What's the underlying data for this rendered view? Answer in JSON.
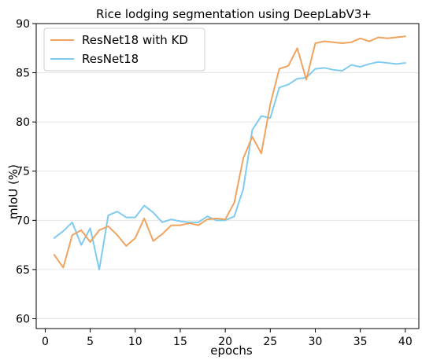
{
  "chart_data": {
    "type": "line",
    "title": "Rice lodging segmentation using DeepLabV3+",
    "xlabel": "epochs",
    "ylabel": "mIoU (%)",
    "xlim": [
      -1,
      41.5
    ],
    "ylim": [
      59,
      90
    ],
    "xticks": [
      0,
      5,
      10,
      15,
      20,
      25,
      30,
      35,
      40
    ],
    "yticks": [
      60,
      65,
      70,
      75,
      80,
      85,
      90
    ],
    "grid": "horizontal",
    "legend": "top-left",
    "x": [
      1,
      2,
      3,
      4,
      5,
      6,
      7,
      8,
      9,
      10,
      11,
      12,
      13,
      14,
      15,
      16,
      17,
      18,
      19,
      20,
      21,
      22,
      23,
      24,
      25,
      26,
      27,
      28,
      29,
      30,
      31,
      32,
      33,
      34,
      35,
      36,
      37,
      38,
      39,
      40
    ],
    "series": [
      {
        "name": "ResNet18 with KD",
        "color": "#f0a35e",
        "values": [
          66.5,
          65.2,
          68.5,
          69.0,
          67.8,
          69.0,
          69.4,
          68.5,
          67.4,
          68.2,
          70.2,
          67.9,
          68.6,
          69.5,
          69.5,
          69.7,
          69.5,
          70.1,
          70.2,
          70.1,
          71.8,
          76.3,
          78.5,
          76.8,
          81.8,
          85.4,
          85.7,
          87.5,
          84.3,
          88.0,
          88.2,
          88.1,
          88.0,
          88.1,
          88.5,
          88.2,
          88.6,
          88.5,
          88.6,
          88.7
        ]
      },
      {
        "name": "ResNet18",
        "color": "#7fcbf0",
        "values": [
          68.2,
          68.9,
          69.8,
          67.5,
          69.2,
          65.0,
          70.5,
          70.9,
          70.3,
          70.3,
          71.5,
          70.8,
          69.8,
          70.1,
          69.9,
          69.8,
          69.8,
          70.4,
          70.0,
          70.0,
          70.4,
          73.2,
          79.2,
          80.6,
          80.4,
          83.5,
          83.8,
          84.4,
          84.5,
          85.4,
          85.5,
          85.3,
          85.2,
          85.8,
          85.6,
          85.9,
          86.1,
          86.0,
          85.9,
          86.0
        ]
      }
    ]
  }
}
